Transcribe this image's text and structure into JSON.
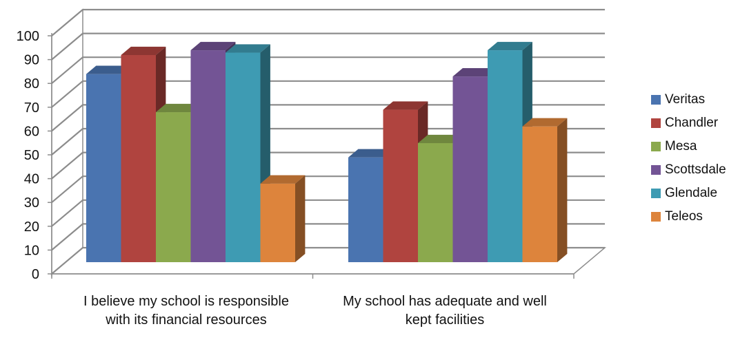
{
  "chart_data": {
    "type": "bar",
    "categories": [
      "I believe my school is responsible with its financial resources",
      "My school has adequate and well kept facilities"
    ],
    "series": [
      {
        "name": "Veritas",
        "values": [
          79,
          44
        ],
        "color": "#4a74b0"
      },
      {
        "name": "Chandler",
        "values": [
          87,
          64
        ],
        "color": "#b0443f"
      },
      {
        "name": "Mesa",
        "values": [
          63,
          50
        ],
        "color": "#8ba94d"
      },
      {
        "name": "Scottsdale",
        "values": [
          89,
          78
        ],
        "color": "#735495"
      },
      {
        "name": "Glendale",
        "values": [
          88,
          89
        ],
        "color": "#3e9bb3"
      },
      {
        "name": "Teleos",
        "values": [
          33,
          57
        ],
        "color": "#dd843c"
      }
    ],
    "ylim": [
      0,
      100
    ],
    "yticks": [
      "0",
      "10",
      "20",
      "30",
      "40",
      "50",
      "60",
      "70",
      "80",
      "90",
      "100"
    ],
    "grid": true,
    "legend": "right",
    "style": "3d-clustered-column"
  }
}
